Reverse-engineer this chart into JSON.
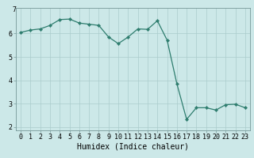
{
  "x": [
    0,
    1,
    2,
    3,
    4,
    5,
    6,
    7,
    8,
    9,
    10,
    11,
    12,
    13,
    14,
    15,
    16,
    17,
    18,
    19,
    20,
    21,
    22,
    23
  ],
  "y": [
    6.05,
    6.15,
    6.2,
    6.35,
    6.6,
    6.62,
    6.45,
    6.4,
    6.35,
    5.85,
    5.57,
    5.85,
    6.2,
    6.18,
    6.55,
    5.72,
    3.85,
    2.32,
    2.82,
    2.82,
    2.72,
    2.95,
    2.97,
    2.82
  ],
  "line_color": "#2e7d6e",
  "bg_color": "#cce8e8",
  "grid_color": "#aacccc",
  "xlabel": "Humidex (Indice chaleur)",
  "top_ylabel": "7",
  "ylim": [
    1.85,
    7.1
  ],
  "xlim": [
    -0.5,
    23.5
  ],
  "yticks": [
    2,
    3,
    4,
    5,
    6
  ],
  "xticks": [
    0,
    1,
    2,
    3,
    4,
    5,
    6,
    7,
    8,
    9,
    10,
    11,
    12,
    13,
    14,
    15,
    16,
    17,
    18,
    19,
    20,
    21,
    22,
    23
  ],
  "label_fontsize": 7,
  "tick_fontsize": 6
}
